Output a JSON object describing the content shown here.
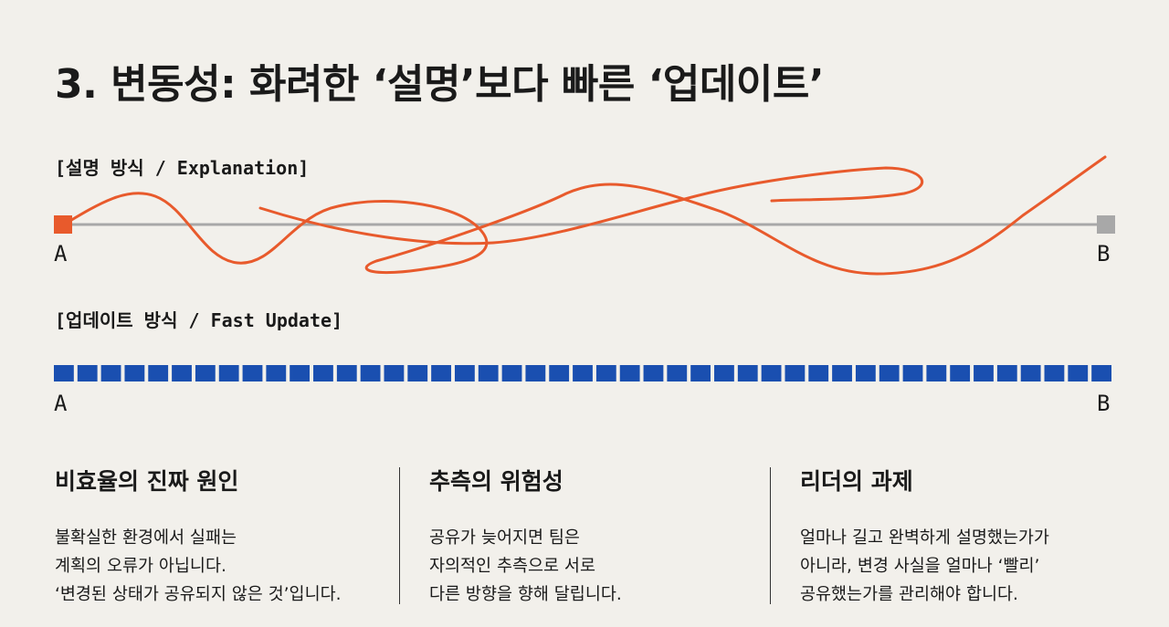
{
  "title": "3. 변동성: 화려한 ‘설명’보다 빠른 ‘업데이트’",
  "explanation": {
    "label": "[설명 방식 / Explanation]",
    "start": "A",
    "end": "B",
    "colors": {
      "line": "#e85a2c",
      "baseline": "#a8a8a8",
      "start_marker": "#e85a2c",
      "end_marker": "#a8a8a8"
    }
  },
  "fast_update": {
    "label": "[업데이트 방식 / Fast Update]",
    "start": "A",
    "end": "B",
    "colors": {
      "segment": "#1a4fb0",
      "gap": "#f2f0eb"
    }
  },
  "columns": [
    {
      "heading": "비효율의 진짜 원인",
      "lines": [
        "불확실한 환경에서 실패는",
        "계획의 오류가 아닙니다.",
        "‘변경된 상태가 공유되지 않은 것’입니다."
      ]
    },
    {
      "heading": "추측의 위험성",
      "lines": [
        "공유가 늦어지면 팀은",
        "자의적인 추측으로 서로",
        "다른 방향을 향해 달립니다."
      ]
    },
    {
      "heading": "리더의 과제",
      "lines": [
        "얼마나 길고 완벽하게 설명했는가가",
        "아니라, 변경 사실을 얼마나 ‘빨리’",
        "공유했는가를 관리해야 합니다."
      ]
    }
  ]
}
